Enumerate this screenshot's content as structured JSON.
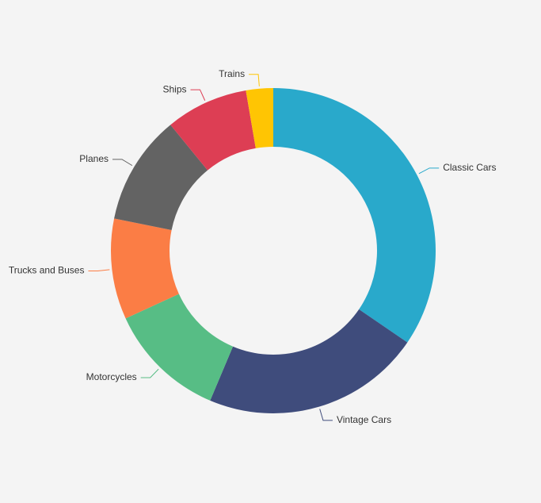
{
  "page": {
    "background_color": "#f4f4f4",
    "text_color": "#333333"
  },
  "chart_data": {
    "type": "pie",
    "subtype": "donut",
    "title": "",
    "categories": [
      "Classic Cars",
      "Vintage Cars",
      "Motorcycles",
      "Trucks and Buses",
      "Planes",
      "Ships",
      "Trains"
    ],
    "values": [
      34.5,
      21.8,
      11.8,
      10.0,
      10.9,
      8.2,
      2.7
    ],
    "colors": [
      "#29a9cb",
      "#3f4c7c",
      "#57bd85",
      "#fb7d45",
      "#636363",
      "#dd3e54",
      "#ffc503"
    ],
    "unit": "percent",
    "start_angle_deg": 0,
    "direction": "clockwise",
    "inner_radius_ratio": 0.64,
    "legend_position": "none",
    "labels": "outside-with-leader-lines",
    "label_color": "#333333"
  }
}
